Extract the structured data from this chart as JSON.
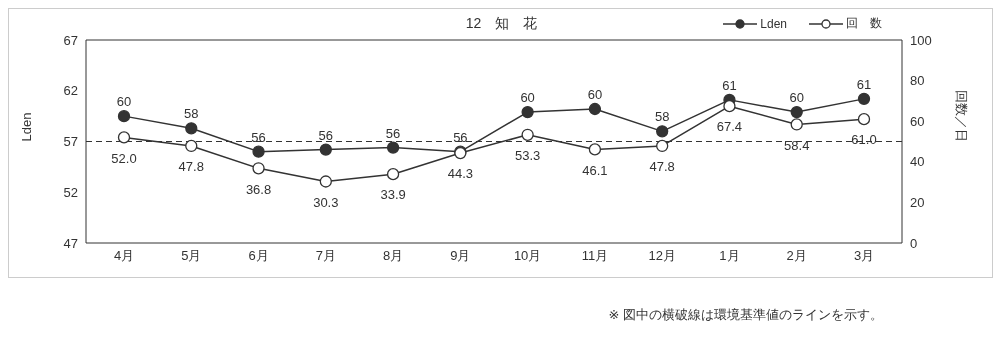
{
  "chart_data": {
    "type": "line",
    "title": "12　知　花",
    "categories": [
      "4月",
      "5月",
      "6月",
      "7月",
      "8月",
      "9月",
      "10月",
      "11月",
      "12月",
      "1月",
      "2月",
      "3月"
    ],
    "series": [
      {
        "name": "Lden",
        "color": "#333333",
        "values": [
          59.5,
          58.3,
          56.0,
          56.2,
          56.4,
          56.0,
          59.9,
          60.2,
          58.0,
          61.1,
          59.9,
          61.2
        ],
        "value_labels": [
          "60",
          "58",
          "56",
          "56",
          "56",
          "56",
          "60",
          "60",
          "58",
          "61",
          "60",
          "61"
        ]
      },
      {
        "name": "回　数",
        "color": "#ffffff",
        "axis": "y2",
        "values": [
          52.0,
          47.8,
          36.8,
          30.3,
          33.9,
          44.3,
          53.3,
          46.1,
          47.8,
          67.4,
          58.4,
          61.0
        ],
        "value_labels": [
          "52.0",
          "47.8",
          "36.8",
          "30.3",
          "33.9",
          "44.3",
          "53.3",
          "46.1",
          "47.8",
          "67.4",
          "58.4",
          "61.0"
        ]
      }
    ],
    "ylabel": "Lden",
    "y2label": "回数／日",
    "ylim": [
      47,
      67
    ],
    "yticks": [
      47,
      52,
      57,
      62,
      67
    ],
    "y2lim": [
      0,
      100
    ],
    "y2ticks": [
      0,
      20,
      40,
      60,
      80,
      100
    ],
    "ref_lines": [
      {
        "axis": "y",
        "value": 57,
        "line_style": "dashed",
        "color": "#333333"
      }
    ],
    "annotations": [
      "※ 図中の横破線は環境基準値のラインを示す。"
    ],
    "legend": "top right",
    "marker": "circle",
    "line_style": "solid",
    "grid": false
  }
}
